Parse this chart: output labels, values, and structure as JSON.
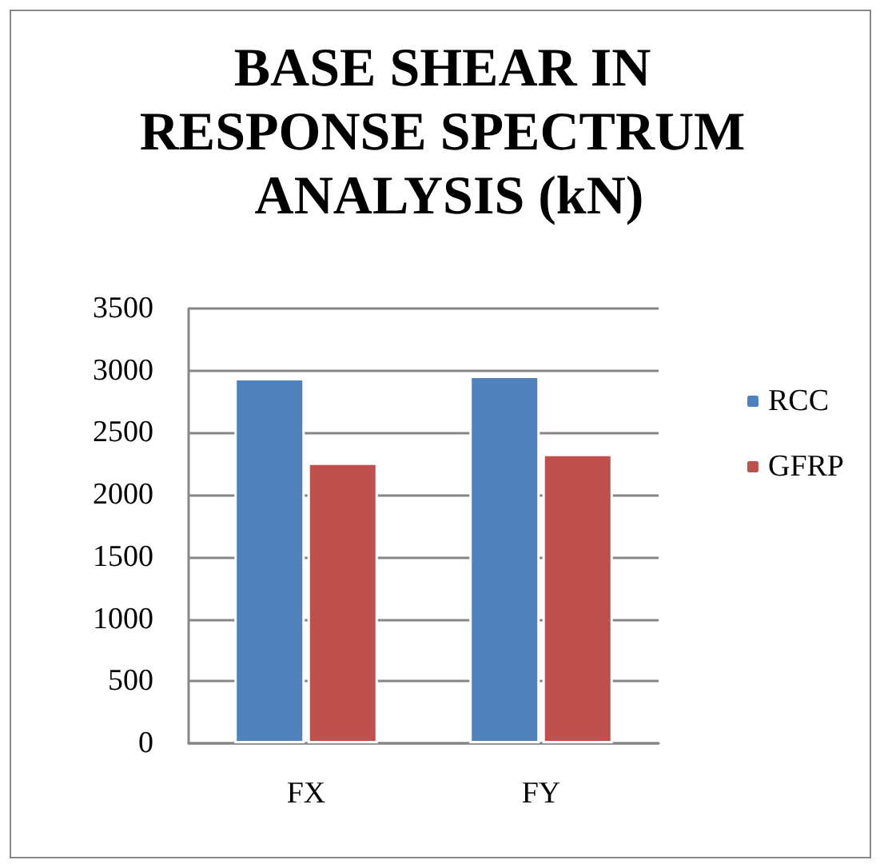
{
  "chart_data": {
    "type": "bar",
    "title": "BASE SHEAR IN RESPONSE SPECTRUM ANALYSIS (kN)",
    "categories": [
      "FX",
      "FY"
    ],
    "series": [
      {
        "name": "RCC",
        "color": "#4f81bd",
        "values": [
          2940,
          2960
        ]
      },
      {
        "name": "GFRP",
        "color": "#c0504d",
        "values": [
          2260,
          2330
        ]
      }
    ],
    "ylim": [
      0,
      3500
    ],
    "yticks": [
      0,
      500,
      1000,
      1500,
      2000,
      2500,
      3000,
      3500
    ],
    "grid": "y",
    "legend": "right"
  }
}
